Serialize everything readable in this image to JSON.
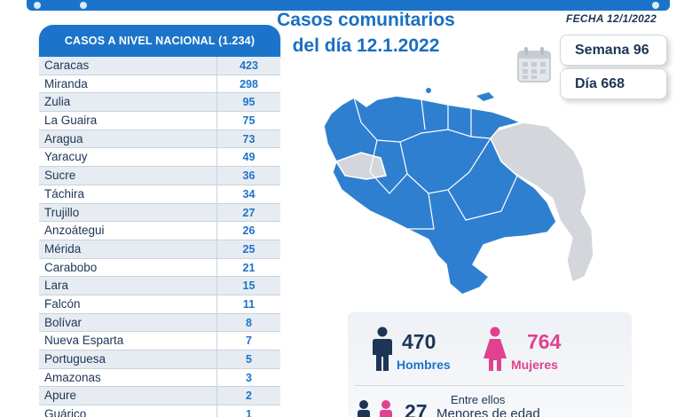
{
  "header": {
    "title_line1": "Casos comunitarios",
    "title_line2": "del día 12.1.2022",
    "fecha": "FECHA 12/1/2022"
  },
  "pills": {
    "semana": "Semana 96",
    "dia": "Día 668"
  },
  "table": {
    "title": "CASOS A NIVEL NACIONAL (1.234)",
    "rows": [
      {
        "name": "Caracas",
        "value": "423"
      },
      {
        "name": "Miranda",
        "value": "298"
      },
      {
        "name": "Zulia",
        "value": "95"
      },
      {
        "name": "La Guaira",
        "value": "75"
      },
      {
        "name": "Aragua",
        "value": "73"
      },
      {
        "name": "Yaracuy",
        "value": "49"
      },
      {
        "name": "Sucre",
        "value": "36"
      },
      {
        "name": "Táchira",
        "value": "34"
      },
      {
        "name": "Trujillo",
        "value": "27"
      },
      {
        "name": "Anzoátegui",
        "value": "26"
      },
      {
        "name": "Mérida",
        "value": "25"
      },
      {
        "name": "Carabobo",
        "value": "21"
      },
      {
        "name": "Lara",
        "value": "15"
      },
      {
        "name": "Falcón",
        "value": "11"
      },
      {
        "name": "Bolívar",
        "value": "8"
      },
      {
        "name": "Nueva Esparta",
        "value": "7"
      },
      {
        "name": "Portuguesa",
        "value": "5"
      },
      {
        "name": "Amazonas",
        "value": "3"
      },
      {
        "name": "Apure",
        "value": "2"
      },
      {
        "name": "Guárico",
        "value": "1"
      }
    ]
  },
  "gender": {
    "men_count": "470",
    "men_label": "Hombres",
    "women_count": "764",
    "women_label": "Mujeres",
    "minors_intro": "Entre ellos",
    "minors_count": "27",
    "minors_label": "Menores de edad"
  },
  "colors": {
    "primary": "#1b74c9",
    "navy": "#1d3556",
    "magenta": "#e0428f",
    "map_active": "#2f7fd1",
    "map_inactive": "#d3d6da"
  }
}
